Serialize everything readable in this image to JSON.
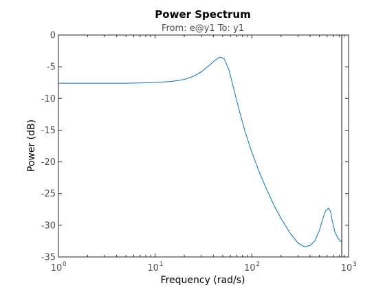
{
  "chart_data": {
    "type": "line",
    "title": "Power Spectrum",
    "subtitle": "From: e@y1  To: y1",
    "xlabel": "Frequency  (rad/s)",
    "ylabel": "Power (dB)",
    "xscale": "log",
    "xlim": [
      1,
      1000
    ],
    "ylim": [
      -35,
      0
    ],
    "grid": false,
    "x_ticks": [
      {
        "base": "10",
        "exp": "0",
        "value": 1
      },
      {
        "base": "10",
        "exp": "1",
        "value": 10
      },
      {
        "base": "10",
        "exp": "2",
        "value": 100
      },
      {
        "base": "10",
        "exp": "3",
        "value": 1000
      }
    ],
    "y_ticks": [
      {
        "label": "0",
        "value": 0
      },
      {
        "label": "-5",
        "value": -5
      },
      {
        "label": "-10",
        "value": -10
      },
      {
        "label": "-15",
        "value": -15
      },
      {
        "label": "-20",
        "value": -20
      },
      {
        "label": "-25",
        "value": -25
      },
      {
        "label": "-30",
        "value": -30
      },
      {
        "label": "-35",
        "value": -35
      }
    ],
    "series": [
      {
        "color": "#0072bd",
        "x": [
          1,
          2,
          5,
          10,
          15,
          20,
          25,
          30,
          35,
          40,
          45,
          48,
          52,
          58,
          65,
          75,
          85,
          100,
          120,
          140,
          170,
          200,
          250,
          300,
          350,
          400,
          450,
          500,
          540,
          580,
          620,
          650,
          680,
          720,
          780,
          840
        ],
        "y": [
          -7.6,
          -7.6,
          -7.6,
          -7.5,
          -7.3,
          -7.0,
          -6.5,
          -5.8,
          -5.0,
          -4.2,
          -3.6,
          -3.5,
          -3.8,
          -5.5,
          -8.5,
          -12.2,
          -15.2,
          -18.5,
          -21.7,
          -24.1,
          -26.9,
          -28.9,
          -31.3,
          -32.8,
          -33.4,
          -33.2,
          -32.4,
          -30.8,
          -29.0,
          -27.7,
          -27.3,
          -27.8,
          -29.4,
          -31.0,
          -32.1,
          -32.6
        ]
      }
    ],
    "vertical_line": {
      "x": 850,
      "color": "#000000"
    }
  }
}
